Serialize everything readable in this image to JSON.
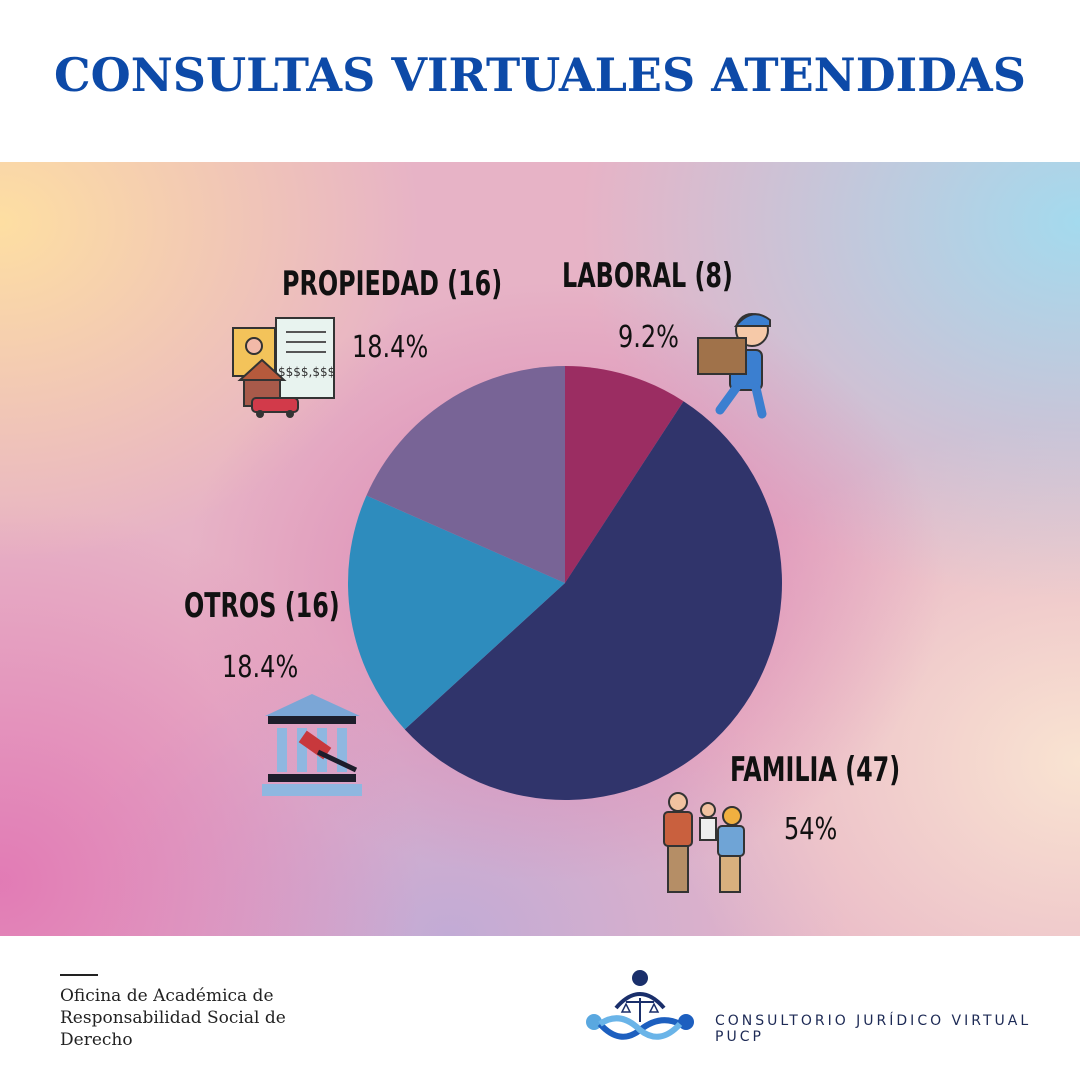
{
  "title": "CONSULTAS VIRTUALES ATENDIDAS",
  "chart_data": {
    "type": "pie",
    "title": "CONSULTAS VIRTUALES ATENDIDAS",
    "start_angle": "12 o'clock, clockwise",
    "slices": [
      {
        "label": "LABORAL (8)",
        "name": "Laboral",
        "value": 8,
        "percent_label": "9.2%",
        "color": "#9b2d62",
        "icon": "worker-carrying-box-icon"
      },
      {
        "label": "FAMILIA (47)",
        "name": "Familia",
        "value": 47,
        "percent_label": "54%",
        "color": "#30346b",
        "icon": "family-icon"
      },
      {
        "label": "OTROS (16)",
        "name": "Otros",
        "value": 16,
        "percent_label": "18.4%",
        "color": "#2e8cbd",
        "icon": "courthouse-gavel-icon"
      },
      {
        "label": "PROPIEDAD (16)",
        "name": "Propiedad",
        "value": 16,
        "percent_label": "18.4%",
        "color": "#786496",
        "icon": "property-documents-icon"
      }
    ]
  },
  "footer": {
    "office_lines": [
      "Oficina de Académica de",
      "Responsabilidad Social de",
      "Derecho"
    ],
    "brand": "CONSULTORIO JURÍDICO VIRTUAL PUCP"
  }
}
